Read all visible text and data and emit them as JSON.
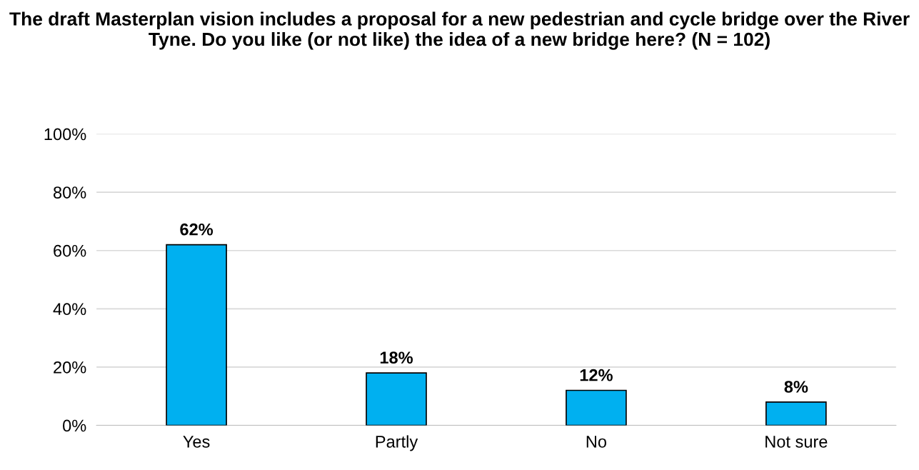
{
  "chart_data": {
    "type": "bar",
    "title": "The draft Masterplan vision includes a proposal for a new pedestrian and cycle bridge over the River Tyne. Do you like (or not like) the idea of a new bridge here? (N = 102)",
    "categories": [
      "Yes",
      "Partly",
      "No",
      "Not sure"
    ],
    "values": [
      62,
      18,
      12,
      8
    ],
    "value_labels": [
      "62%",
      "18%",
      "12%",
      "8%"
    ],
    "color": "#00b0f0",
    "ylim": [
      0,
      100
    ],
    "yticks": [
      {
        "value": 0,
        "label": "0%"
      },
      {
        "value": 20,
        "label": "20%"
      },
      {
        "value": 40,
        "label": "40%"
      },
      {
        "value": 60,
        "label": "60%"
      },
      {
        "value": 80,
        "label": "80%"
      },
      {
        "value": 100,
        "label": "100%"
      }
    ],
    "grid": "y",
    "legend": false
  }
}
